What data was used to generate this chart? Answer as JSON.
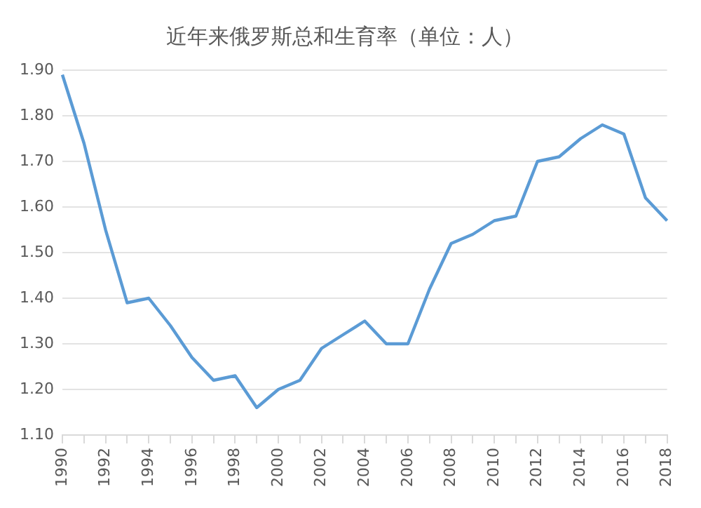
{
  "chart_data": {
    "type": "line",
    "title": "近年来俄罗斯总和生育率（单位：人）",
    "categories": [
      "1990",
      null,
      "1992",
      null,
      "1994",
      null,
      "1996",
      null,
      "1998",
      null,
      "2000",
      null,
      "2002",
      null,
      "2004",
      null,
      "2006",
      null,
      "2008",
      null,
      "2010",
      null,
      "2012",
      null,
      "2014",
      null,
      "2016",
      null,
      "2018"
    ],
    "series": [
      {
        "color": "#5b9bd5",
        "values": [
          1.89,
          1.74,
          1.55,
          1.39,
          1.4,
          1.34,
          1.27,
          1.22,
          1.23,
          1.16,
          1.2,
          1.22,
          1.29,
          1.32,
          1.35,
          1.3,
          1.3,
          1.42,
          1.52,
          1.54,
          1.57,
          1.58,
          1.7,
          1.71,
          1.75,
          1.78,
          1.76,
          1.62,
          1.57
        ]
      }
    ],
    "ylim": [
      1.1,
      1.9
    ],
    "yticks": [
      {
        "value": 1.1,
        "label": "1.10"
      },
      {
        "value": 1.2,
        "label": "1.20"
      },
      {
        "value": 1.3,
        "label": "1.30"
      },
      {
        "value": 1.4,
        "label": "1.40"
      },
      {
        "value": 1.5,
        "label": "1.50"
      },
      {
        "value": 1.6,
        "label": "1.60"
      },
      {
        "value": 1.7,
        "label": "1.70"
      },
      {
        "value": 1.8,
        "label": "1.80"
      },
      {
        "value": 1.9,
        "label": "1.90"
      }
    ],
    "grid": "y",
    "legend": false,
    "marker": "none",
    "line_style": "solid"
  }
}
